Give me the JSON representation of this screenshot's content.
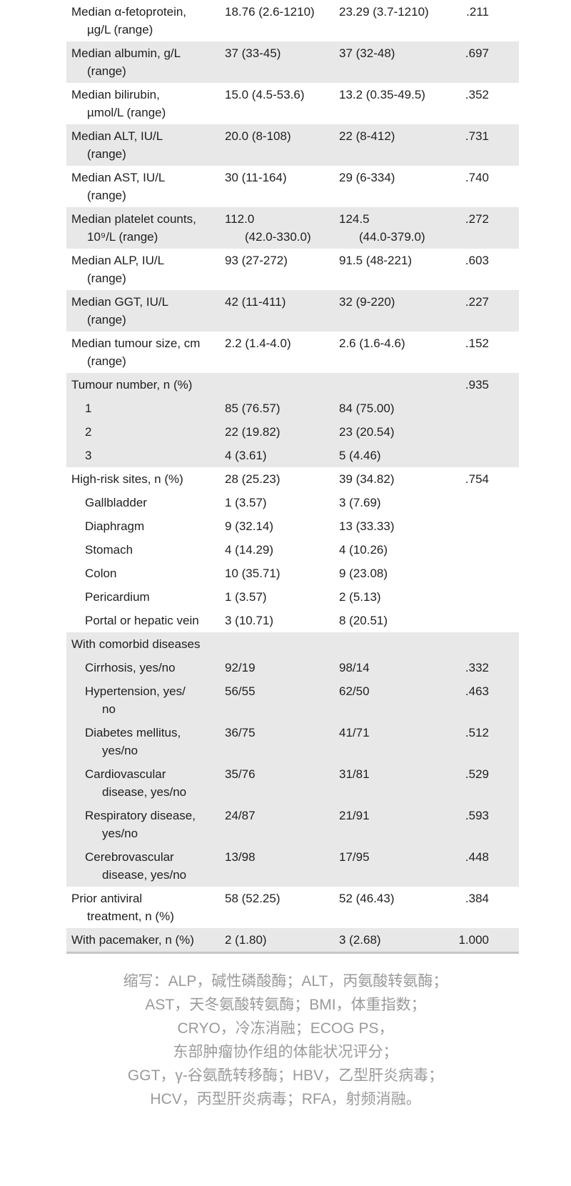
{
  "colors": {
    "row_shade": "#e8e8e8",
    "text": "#1f1f1f",
    "footnote_text": "#9a9a9a",
    "bottom_border": "#c6c6c6"
  },
  "table": {
    "sections": [
      {
        "shade": "white",
        "rows": [
          {
            "label": "Median α-fetoprotein,\nµg/L (range)",
            "c1": "18.76 (2.6-1210)",
            "c2": "23.29 (3.7-1210)",
            "p": ".211"
          }
        ]
      },
      {
        "shade": "gray",
        "rows": [
          {
            "label": "Median albumin, g/L\n(range)",
            "c1": "37 (33-45)",
            "c2": "37 (32-48)",
            "p": ".697"
          }
        ]
      },
      {
        "shade": "white",
        "rows": [
          {
            "label": "Median bilirubin,\nµmol/L (range)",
            "c1": "15.0 (4.5-53.6)",
            "c2": "13.2 (0.35-49.5)",
            "p": ".352"
          }
        ]
      },
      {
        "shade": "gray",
        "rows": [
          {
            "label": "Median ALT, IU/L\n(range)",
            "c1": "20.0 (8-108)",
            "c2": "22 (8-412)",
            "p": ".731"
          }
        ]
      },
      {
        "shade": "white",
        "rows": [
          {
            "label": "Median AST, IU/L\n(range)",
            "c1": "30 (11-164)",
            "c2": "29 (6-334)",
            "p": ".740"
          }
        ]
      },
      {
        "shade": "gray",
        "rows": [
          {
            "label": "Median platelet counts,\n10⁹/L (range)",
            "c1": "112.0\n(42.0-330.0)",
            "c2": "124.5\n(44.0-379.0)",
            "p": ".272"
          }
        ]
      },
      {
        "shade": "white",
        "rows": [
          {
            "label": "Median ALP, IU/L\n(range)",
            "c1": "93 (27-272)",
            "c2": "91.5 (48-221)",
            "p": ".603"
          }
        ]
      },
      {
        "shade": "gray",
        "rows": [
          {
            "label": "Median GGT, IU/L\n(range)",
            "c1": "42 (11-411)",
            "c2": "32 (9-220)",
            "p": ".227"
          }
        ]
      },
      {
        "shade": "white",
        "rows": [
          {
            "label": "Median tumour size, cm\n(range)",
            "c1": "2.2 (1.4-4.0)",
            "c2": "2.6 (1.6-4.6)",
            "p": ".152"
          }
        ]
      },
      {
        "shade": "gray",
        "rows": [
          {
            "label": "Tumour number, n (%)",
            "c1": "",
            "c2": "",
            "p": ".935"
          },
          {
            "label": "1",
            "c1": "85 (76.57)",
            "c2": "84 (75.00)",
            "p": ""
          },
          {
            "label": "2",
            "c1": "22 (19.82)",
            "c2": "23 (20.54)",
            "p": ""
          },
          {
            "label": "3",
            "c1": "4 (3.61)",
            "c2": "5 (4.46)",
            "p": ""
          }
        ]
      },
      {
        "shade": "white",
        "rows": [
          {
            "label": "High-risk sites, n (%)",
            "c1": "28 (25.23)",
            "c2": "39 (34.82)",
            "p": ".754"
          },
          {
            "label": "Gallbladder",
            "c1": "1 (3.57)",
            "c2": "3 (7.69)",
            "p": ""
          },
          {
            "label": "Diaphragm",
            "c1": "9 (32.14)",
            "c2": "13 (33.33)",
            "p": ""
          },
          {
            "label": "Stomach",
            "c1": "4 (14.29)",
            "c2": "4 (10.26)",
            "p": ""
          },
          {
            "label": "Colon",
            "c1": "10 (35.71)",
            "c2": "9 (23.08)",
            "p": ""
          },
          {
            "label": "Pericardium",
            "c1": "1 (3.57)",
            "c2": "2 (5.13)",
            "p": ""
          },
          {
            "label": "Portal or hepatic vein",
            "c1": "3 (10.71)",
            "c2": "8 (20.51)",
            "p": ""
          }
        ]
      },
      {
        "shade": "gray",
        "rows": [
          {
            "label": "With comorbid diseases",
            "c1": "",
            "c2": "",
            "p": ""
          },
          {
            "label": "Cirrhosis, yes/no",
            "c1": "92/19",
            "c2": "98/14",
            "p": ".332"
          },
          {
            "label": "Hypertension, yes/\nno",
            "c1": "56/55",
            "c2": "62/50",
            "p": ".463"
          },
          {
            "label": "Diabetes mellitus,\nyes/no",
            "c1": "36/75",
            "c2": "41/71",
            "p": ".512"
          },
          {
            "label": "Cardiovascular\ndisease, yes/no",
            "c1": "35/76",
            "c2": "31/81",
            "p": ".529"
          },
          {
            "label": "Respiratory disease,\nyes/no",
            "c1": "24/87",
            "c2": "21/91",
            "p": ".593"
          },
          {
            "label": "Cerebrovascular\ndisease, yes/no",
            "c1": "13/98",
            "c2": "17/95",
            "p": ".448"
          }
        ]
      },
      {
        "shade": "white",
        "rows": [
          {
            "label": "Prior antiviral\ntreatment, n (%)",
            "c1": "58 (52.25)",
            "c2": "52 (46.43)",
            "p": ".384"
          }
        ]
      },
      {
        "shade": "gray",
        "rows": [
          {
            "label": "With pacemaker, n (%)",
            "c1": "2 (1.80)",
            "c2": "3 (2.68)",
            "p": "1.000"
          }
        ]
      }
    ]
  },
  "footnote": {
    "lines": [
      "缩写：ALP，碱性磷酸酶；ALT，丙氨酸转氨酶；",
      "AST，天冬氨酸转氨酶；BMI，体重指数；",
      "CRYO，冷冻消融；ECOG PS，",
      "东部肿瘤协作组的体能状况评分；",
      "GGT，γ-谷氨酰转移酶；HBV，乙型肝炎病毒；",
      "HCV，丙型肝炎病毒；RFA，射频消融。"
    ]
  }
}
